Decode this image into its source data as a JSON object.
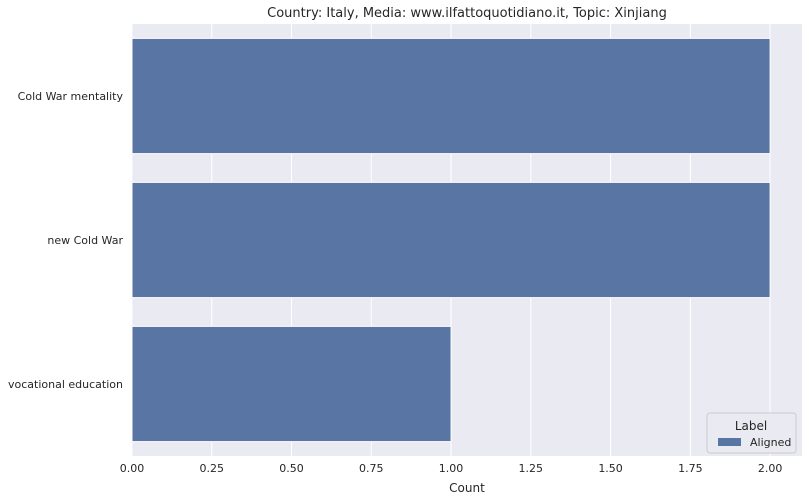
{
  "chart_data": {
    "type": "bar",
    "orientation": "horizontal",
    "title": "Country: Italy, Media: www.ilfattoquotidiano.it, Topic: Xinjiang",
    "xlabel": "Count",
    "ylabel": "",
    "categories": [
      "Cold War mentality",
      "new Cold War",
      "vocational education"
    ],
    "series": [
      {
        "name": "Aligned",
        "values": [
          2,
          2,
          1
        ],
        "color": "#5975a4"
      }
    ],
    "xlim": [
      0,
      2.1
    ],
    "x_ticks": [
      "0.00",
      "0.25",
      "0.50",
      "0.75",
      "1.00",
      "1.25",
      "1.50",
      "1.75",
      "2.00"
    ],
    "x_tick_values": [
      0,
      0.25,
      0.5,
      0.75,
      1.0,
      1.25,
      1.5,
      1.75,
      2.0
    ],
    "grid": true,
    "legend": {
      "title": "Label",
      "placement": "lower-right"
    },
    "colors": {
      "plot_background": "#eaeaf2",
      "grid": "#ffffff",
      "text": "#262626"
    }
  }
}
